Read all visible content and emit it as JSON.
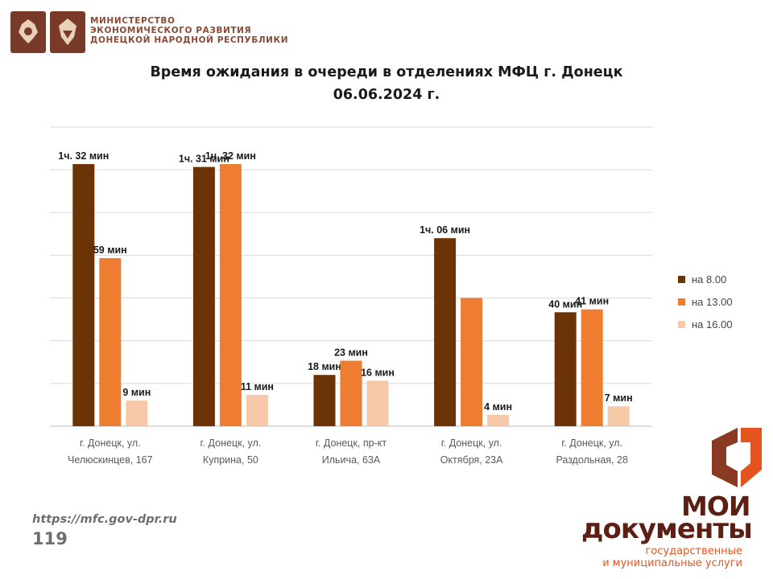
{
  "header": {
    "ministry_lines": [
      "МИНИСТЕРСТВО",
      "ЭКОНОМИЧЕСКОГО РАЗВИТИЯ",
      "ДОНЕЦКОЙ НАРОДНОЙ РЕСПУБЛИКИ"
    ]
  },
  "footer": {
    "url": "https://mfc.gov-dpr.ru",
    "page_number": "119",
    "brand_line1": "МОИ",
    "brand_line2": "документы",
    "brand_tag1": "государственные",
    "brand_tag2": "и муниципальные услуги"
  },
  "colors": {
    "series": [
      "#6b3306",
      "#ee7d31",
      "#f7c9a8"
    ],
    "grid": "#d9d9d9",
    "emblem_bg": "#7a3a2a",
    "brand_dark": "#5b1f14",
    "brand_accent": "#e5541f"
  },
  "chart_data": {
    "type": "bar",
    "title": "Время ожидания в очереди в отделениях МФЦ г. Донецк",
    "subtitle": "06.06.2024 г.",
    "xlabel": "",
    "ylabel": "",
    "unit": "мин",
    "ylim": [
      0,
      105
    ],
    "grid": true,
    "legend_position": "right",
    "categories": [
      [
        "г. Донецк, ул.",
        "Челюскинцев, 167"
      ],
      [
        "г. Донецк, ул.",
        "Куприна, 50"
      ],
      [
        "г. Донецк, пр-кт",
        "Ильича, 63А"
      ],
      [
        "г. Донецк, ул.",
        "Октября, 23А"
      ],
      [
        "г. Донецк, ул.",
        "Раздольная, 28"
      ]
    ],
    "series": [
      {
        "name": "на 8.00",
        "values": [
          92,
          91,
          18,
          66,
          40
        ],
        "labels": [
          "1ч. 32 мин",
          "1ч. 31 мин",
          "18 мин",
          "1ч. 06 мин",
          "40 мин"
        ]
      },
      {
        "name": "на 13.00",
        "values": [
          59,
          92,
          23,
          45,
          41
        ],
        "labels": [
          "59 мин",
          "1ч. 32 мин",
          "23 мин",
          "",
          "41 мин"
        ]
      },
      {
        "name": "на 16.00",
        "values": [
          9,
          11,
          16,
          4,
          7
        ],
        "labels": [
          "9 мин",
          "11 мин",
          "16 мин",
          "4 мин",
          "7 мин"
        ]
      }
    ]
  }
}
